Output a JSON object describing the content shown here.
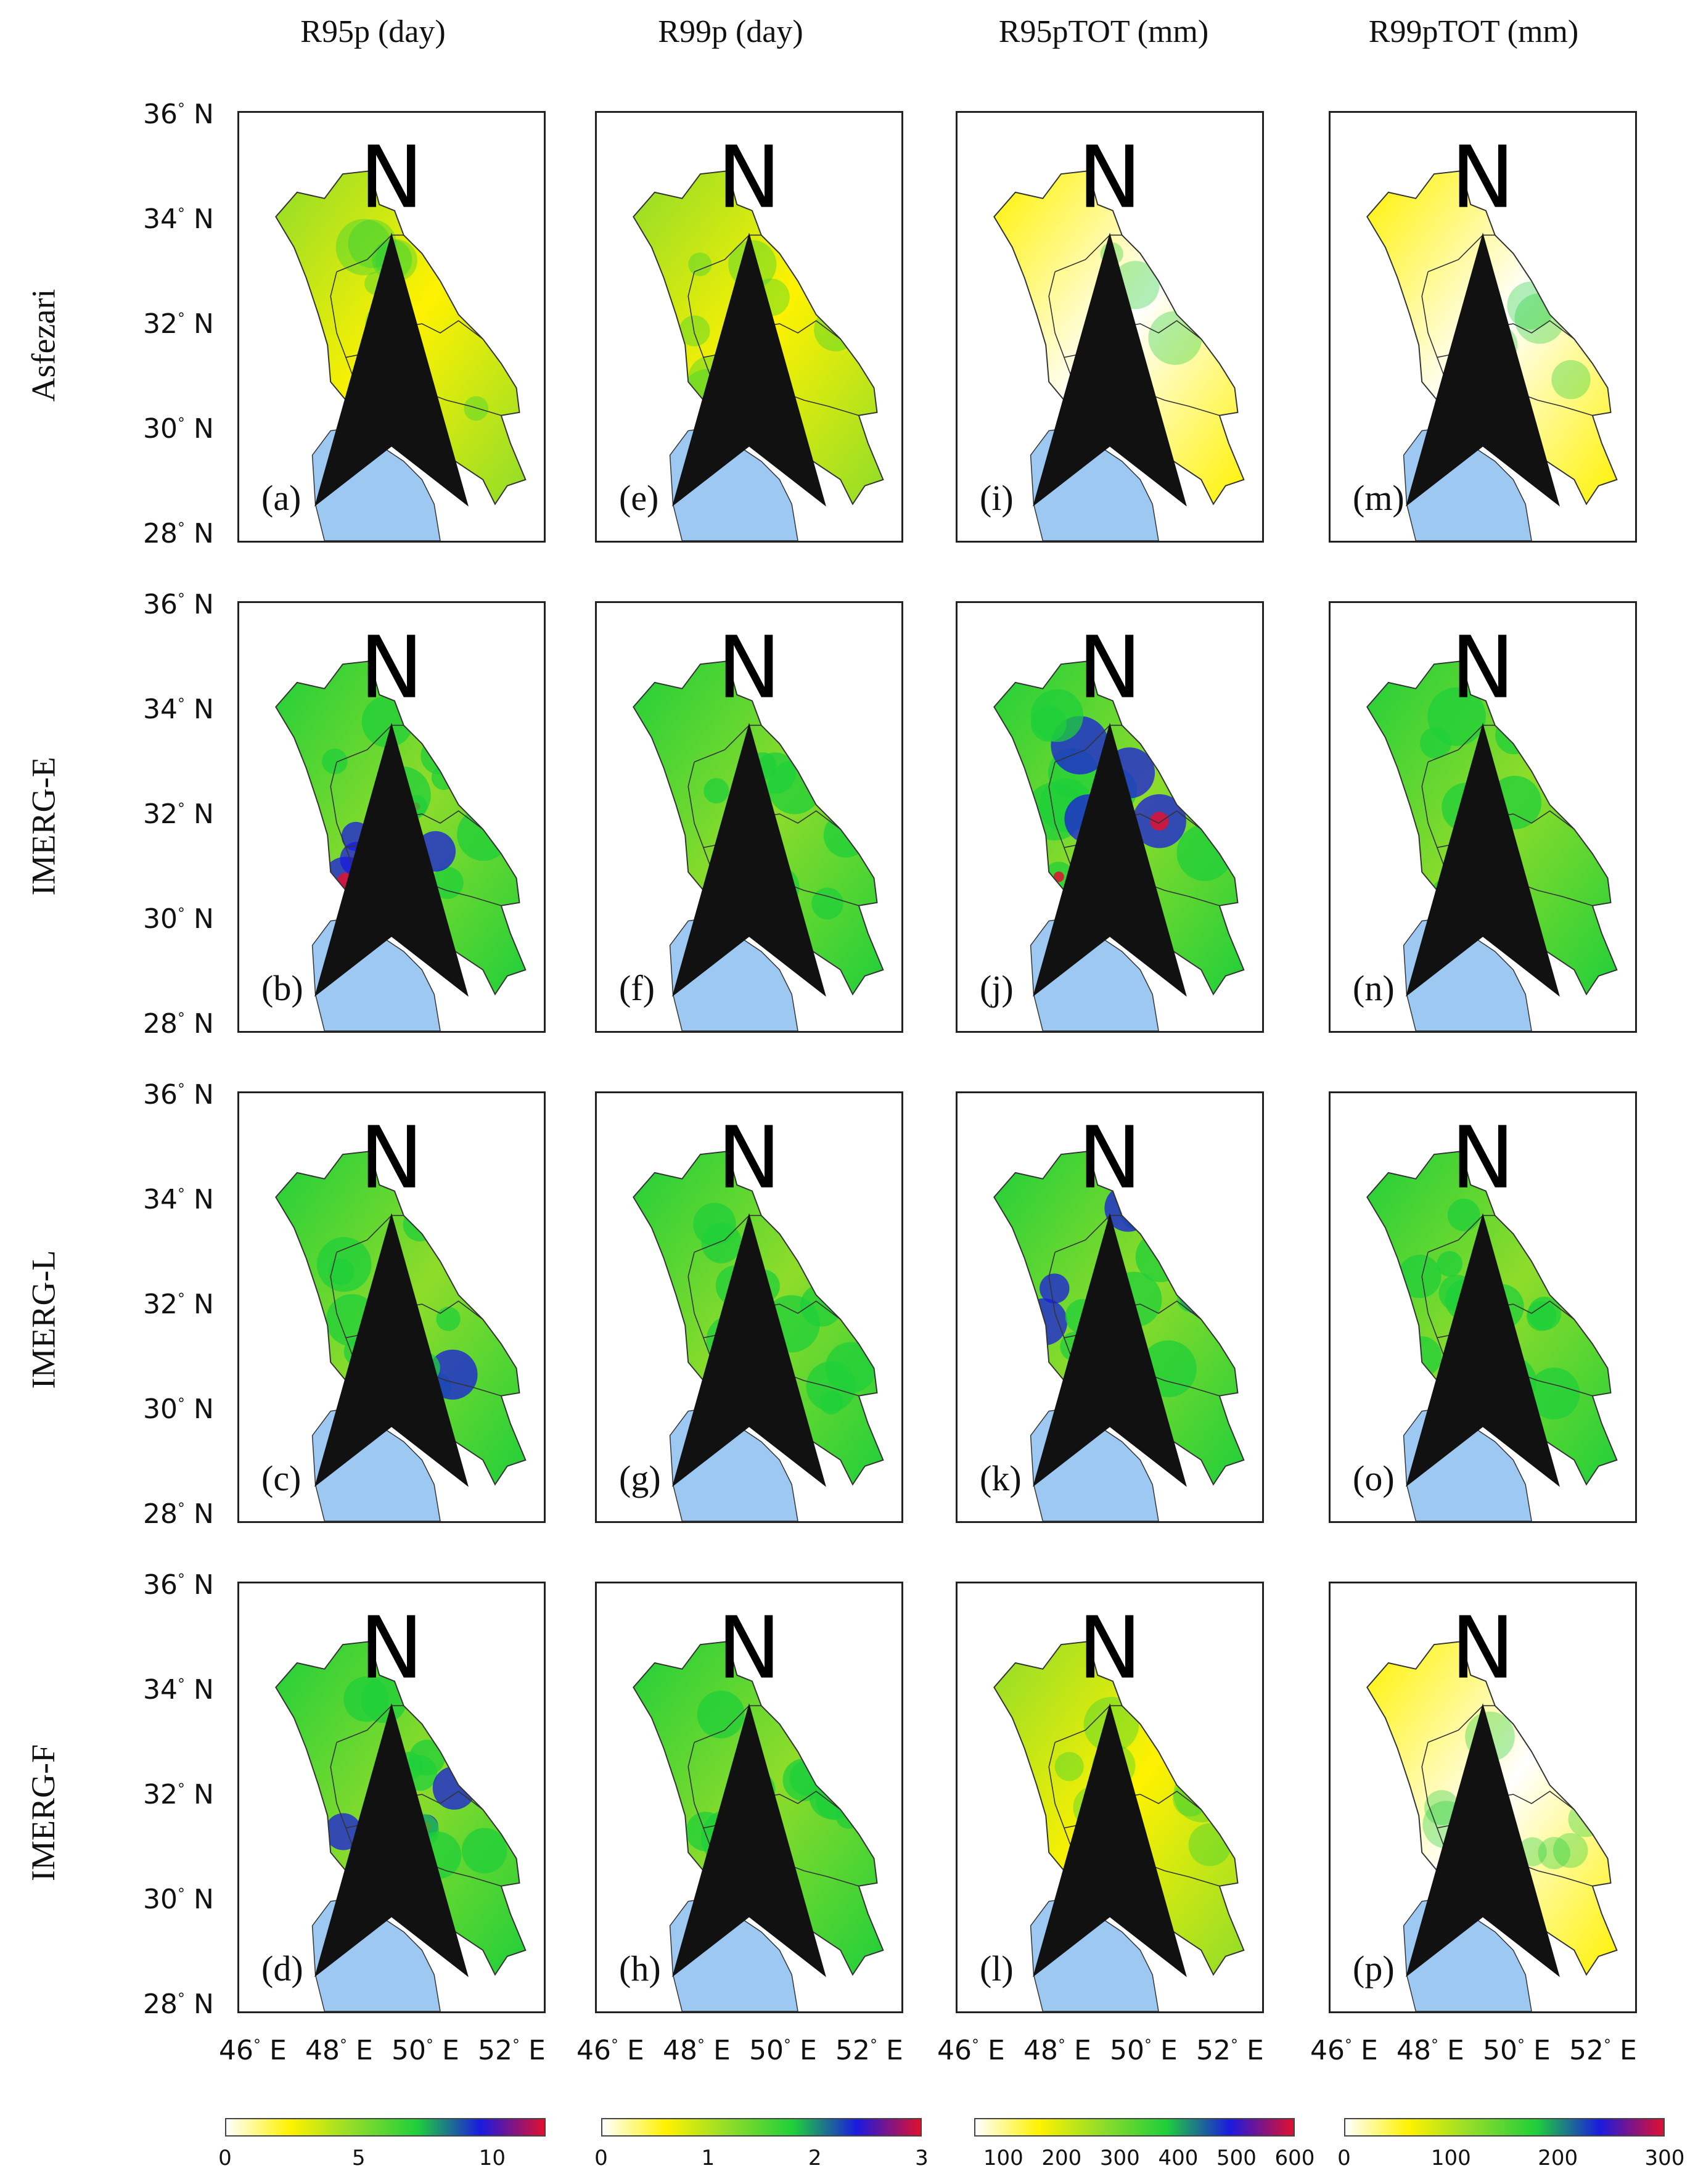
{
  "columns": [
    "R95p (day)",
    "R99p (day)",
    "R95pTOT (mm)",
    "R99pTOT (mm)"
  ],
  "rows": [
    "Asfezari",
    "IMERG-E",
    "IMERG-L",
    "IMERG-F"
  ],
  "lat_labels": [
    "36",
    "34",
    "32",
    "30",
    "28"
  ],
  "lat_suffix": "N",
  "lon_labels": [
    "46",
    "48",
    "50",
    "52"
  ],
  "lon_suffix": "E",
  "north_letter": "N",
  "panel_labels": [
    [
      "(a)",
      "(e)",
      "(i)",
      "(m)"
    ],
    [
      "(b)",
      "(f)",
      "(j)",
      "(n)"
    ],
    [
      "(c)",
      "(g)",
      "(k)",
      "(o)"
    ],
    [
      "(d)",
      "(h)",
      "(l)",
      "(p)"
    ]
  ],
  "colorbars": [
    {
      "ticks": [
        "0",
        "5",
        "10"
      ],
      "tick_values": [
        0,
        5,
        10
      ],
      "min": 0,
      "max": 12
    },
    {
      "ticks": [
        "0",
        "1",
        "2",
        "3"
      ],
      "tick_values": [
        0,
        1,
        2,
        3
      ],
      "min": 0,
      "max": 3
    },
    {
      "ticks": [
        "100",
        "200",
        "300",
        "400",
        "500",
        "600"
      ],
      "tick_values": [
        100,
        200,
        300,
        400,
        500,
        600
      ],
      "min": 50,
      "max": 600
    },
    {
      "ticks": [
        "0",
        "100",
        "200",
        "300"
      ],
      "tick_values": [
        0,
        100,
        200,
        300
      ],
      "min": 0,
      "max": 300
    }
  ],
  "colors": {
    "sea": "#9cc8f2",
    "ramp": [
      "#ffffff",
      "#fff200",
      "#8fdc2a",
      "#1fcf3a",
      "#1a1adf",
      "#e0102f"
    ]
  },
  "row_intensity": [
    [
      0.3,
      0.22,
      0.12,
      0.1
    ],
    [
      0.55,
      0.4,
      0.55,
      0.4
    ],
    [
      0.58,
      0.42,
      0.6,
      0.42
    ],
    [
      0.55,
      0.4,
      0.22,
      0.18
    ]
  ]
}
